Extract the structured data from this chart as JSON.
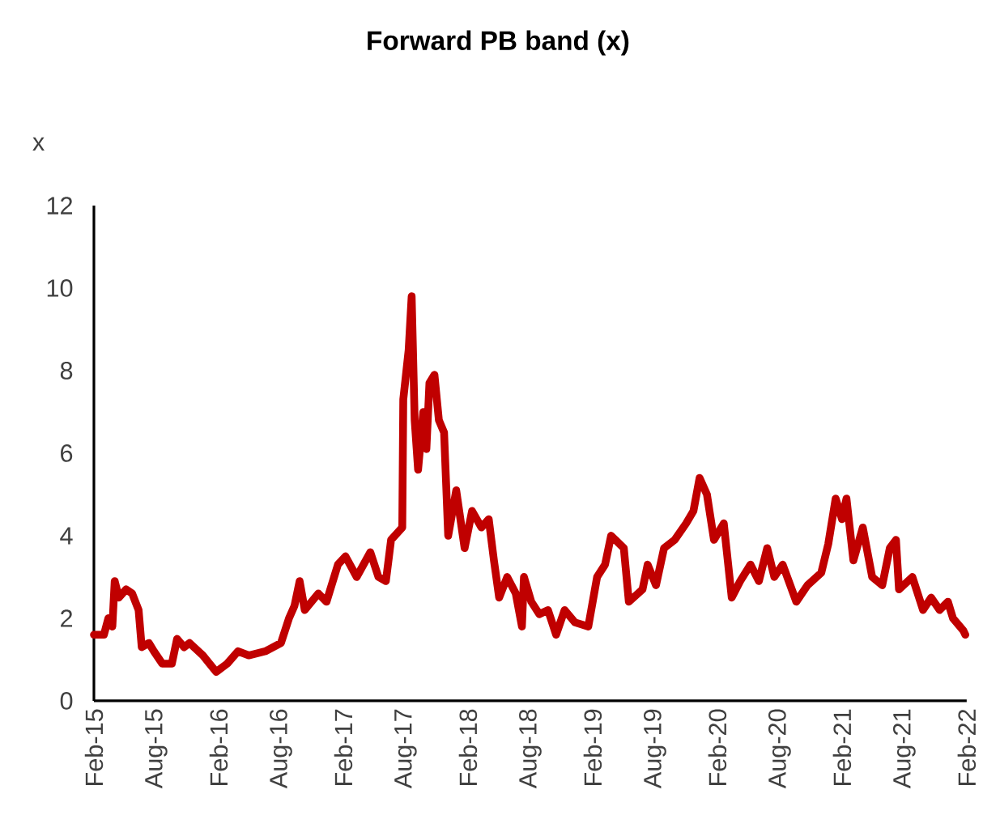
{
  "chart_data": {
    "type": "line",
    "title": "Forward PB band (x)",
    "ylabel": "x",
    "x": [
      "2015-02-01",
      "2015-02-28",
      "2015-03-13",
      "2015-03-25",
      "2015-04-01",
      "2015-04-13",
      "2015-05-04",
      "2015-05-22",
      "2015-06-10",
      "2015-06-19",
      "2015-07-10",
      "2015-07-25",
      "2015-08-19",
      "2015-09-16",
      "2015-10-01",
      "2015-10-22",
      "2015-11-07",
      "2015-12-16",
      "2016-01-25",
      "2016-02-25",
      "2016-03-28",
      "2016-04-28",
      "2016-06-16",
      "2016-08-01",
      "2016-08-25",
      "2016-09-10",
      "2016-09-25",
      "2016-10-10",
      "2016-11-19",
      "2016-12-13",
      "2017-01-16",
      "2017-02-07",
      "2017-03-10",
      "2017-04-19",
      "2017-05-13",
      "2017-06-04",
      "2017-06-19",
      "2017-07-22",
      "2017-07-25",
      "2017-08-10",
      "2017-08-19",
      "2017-08-28",
      "2017-09-07",
      "2017-09-22",
      "2017-10-01",
      "2017-10-10",
      "2017-10-25",
      "2017-11-07",
      "2017-11-22",
      "2017-12-04",
      "2017-12-28",
      "2018-01-22",
      "2018-02-12",
      "2018-03-10",
      "2018-04-01",
      "2018-04-16",
      "2018-05-01",
      "2018-05-25",
      "2018-06-19",
      "2018-07-07",
      "2018-07-13",
      "2018-08-04",
      "2018-08-28",
      "2018-09-22",
      "2018-10-16",
      "2018-11-10",
      "2018-12-10",
      "2019-01-19",
      "2019-02-13",
      "2019-03-07",
      "2019-03-25",
      "2019-05-01",
      "2019-05-16",
      "2019-06-25",
      "2019-07-10",
      "2019-08-04",
      "2019-08-28",
      "2019-09-28",
      "2019-11-01",
      "2019-11-22",
      "2019-12-10",
      "2020-01-01",
      "2020-01-22",
      "2020-02-19",
      "2020-03-13",
      "2020-04-07",
      "2020-05-07",
      "2020-06-01",
      "2020-06-25",
      "2020-07-16",
      "2020-08-10",
      "2020-09-19",
      "2020-10-22",
      "2020-12-01",
      "2020-12-22",
      "2021-01-13",
      "2021-02-01",
      "2021-02-13",
      "2021-03-04",
      "2021-04-01",
      "2021-04-28",
      "2021-05-28",
      "2021-06-19",
      "2021-07-07",
      "2021-07-16",
      "2021-08-25",
      "2021-09-25",
      "2021-10-19",
      "2021-11-13",
      "2021-12-07",
      "2021-12-22",
      "2022-01-22",
      "2022-01-28"
    ],
    "series": [
      {
        "color": "#c00000",
        "values": [
          1.6,
          1.6,
          2.0,
          1.8,
          2.9,
          2.5,
          2.7,
          2.6,
          2.2,
          1.3,
          1.4,
          1.2,
          0.9,
          0.9,
          1.5,
          1.3,
          1.4,
          1.1,
          0.7,
          0.9,
          1.2,
          1.1,
          1.2,
          1.4,
          2.0,
          2.3,
          2.9,
          2.2,
          2.6,
          2.4,
          3.3,
          3.5,
          3.0,
          3.6,
          3.0,
          2.9,
          3.9,
          4.2,
          7.3,
          8.5,
          9.8,
          6.8,
          5.6,
          7.0,
          6.1,
          7.7,
          7.9,
          6.8,
          6.5,
          4.0,
          5.1,
          3.7,
          4.6,
          4.2,
          4.4,
          3.4,
          2.5,
          3.0,
          2.6,
          1.8,
          3.0,
          2.4,
          2.1,
          2.2,
          1.6,
          2.2,
          1.9,
          1.8,
          3.0,
          3.3,
          4.0,
          3.7,
          2.4,
          2.7,
          3.3,
          2.8,
          3.7,
          3.9,
          4.3,
          4.6,
          5.4,
          5.0,
          3.9,
          4.3,
          2.5,
          2.9,
          3.3,
          2.9,
          3.7,
          3.0,
          3.3,
          2.4,
          2.8,
          3.1,
          3.8,
          4.9,
          4.4,
          4.9,
          3.4,
          4.2,
          3.0,
          2.8,
          3.7,
          3.9,
          2.7,
          3.0,
          2.2,
          2.5,
          2.2,
          2.4,
          2.0,
          1.7,
          1.6
        ]
      }
    ],
    "xlim": [
      "2015-02-01",
      "2022-02-01"
    ],
    "xticks": [
      {
        "value": "2015-02-01",
        "label": "Feb-15"
      },
      {
        "value": "2015-08-01",
        "label": "Aug-15"
      },
      {
        "value": "2016-02-01",
        "label": "Feb-16"
      },
      {
        "value": "2016-08-01",
        "label": "Aug-16"
      },
      {
        "value": "2017-02-01",
        "label": "Feb-17"
      },
      {
        "value": "2017-08-01",
        "label": "Aug-17"
      },
      {
        "value": "2018-02-01",
        "label": "Feb-18"
      },
      {
        "value": "2018-08-01",
        "label": "Aug-18"
      },
      {
        "value": "2019-02-01",
        "label": "Feb-19"
      },
      {
        "value": "2019-08-01",
        "label": "Aug-19"
      },
      {
        "value": "2020-02-01",
        "label": "Feb-20"
      },
      {
        "value": "2020-08-01",
        "label": "Aug-20"
      },
      {
        "value": "2021-02-01",
        "label": "Feb-21"
      },
      {
        "value": "2021-08-01",
        "label": "Aug-21"
      },
      {
        "value": "2022-02-01",
        "label": "Feb-22"
      }
    ],
    "ylim": [
      0,
      12
    ],
    "yticks": [
      0,
      2,
      4,
      6,
      8,
      10,
      12
    ],
    "grid": false,
    "marker": "none",
    "line_style": "solid"
  }
}
